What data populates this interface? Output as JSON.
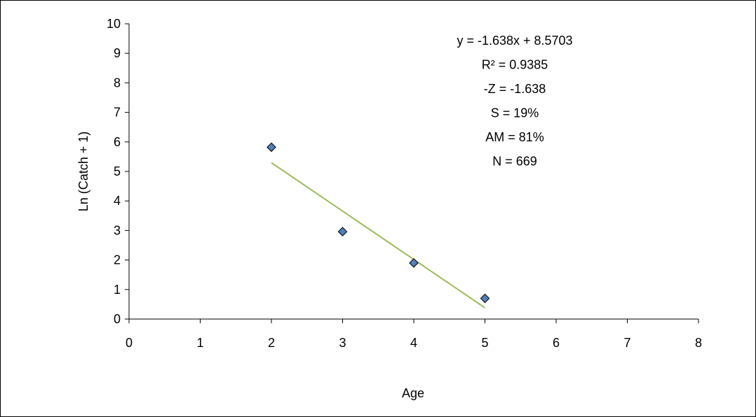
{
  "chart_data": {
    "type": "scatter",
    "title": "",
    "xlabel": "Age",
    "ylabel": "Ln (Catch + 1)",
    "xlim": [
      0,
      8
    ],
    "ylim": [
      0,
      10
    ],
    "x_ticks": [
      0,
      1,
      2,
      3,
      4,
      5,
      6,
      7,
      8
    ],
    "y_ticks": [
      0,
      1,
      2,
      3,
      4,
      5,
      6,
      7,
      8,
      9,
      10
    ],
    "grid": false,
    "legend": "none",
    "series": [
      {
        "x": [
          2,
          3,
          4,
          5
        ],
        "y": [
          5.82,
          2.96,
          1.9,
          0.7
        ],
        "marker": "diamond",
        "color": "#4F81BD"
      }
    ],
    "trendline": {
      "slope": -1.638,
      "intercept": 8.5703,
      "x_range": [
        2,
        5
      ],
      "color": "#9BBB59"
    },
    "annotations": [
      "y = -1.638x + 8.5703",
      "R² = 0.9385",
      "-Z = -1.638",
      "S = 19%",
      "AM = 81%",
      "N = 669"
    ]
  }
}
